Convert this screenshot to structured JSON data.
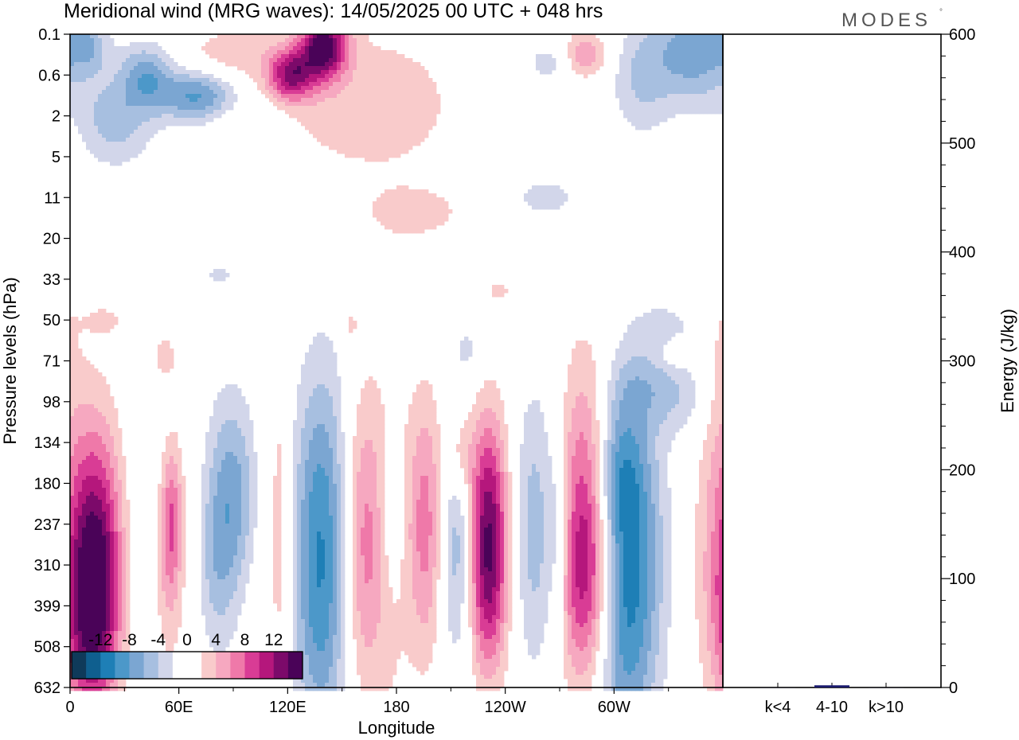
{
  "header": {
    "title": "Meridional wind (MRG waves):  14/05/2025  00 UTC  + 048 hrs",
    "logo": "MODES",
    "logo_mark": "°"
  },
  "colors": {
    "levels": [
      -14,
      -12,
      -10,
      -8,
      -6,
      -4,
      -2,
      0,
      2,
      4,
      6,
      8,
      10,
      12,
      14
    ],
    "palette": [
      "#0f3a5a",
      "#0f5f8f",
      "#1e7fb6",
      "#4c98c9",
      "#7ba6d2",
      "#a7bfe0",
      "#d2d6ea",
      "#ffffff",
      "#ffffff",
      "#f9cbcb",
      "#f6a8c0",
      "#ef79a9",
      "#d93c95",
      "#b5177c",
      "#7c0a6a",
      "#4a0358"
    ]
  },
  "chart_data": [
    {
      "type": "heatmap",
      "title": "Meridional wind (MRG waves):  14/05/2025  00 UTC  + 048 hrs",
      "xlabel": "Longitude",
      "ylabel": "Pressure levels (hPa)",
      "x_ticks": [
        "0",
        "60E",
        "120E",
        "180",
        "120W",
        "60W"
      ],
      "x_tick_degrees": [
        0,
        60,
        120,
        180,
        240,
        300
      ],
      "xlim": [
        0,
        360
      ],
      "y_ticks": [
        "0.1",
        "0.6",
        "2",
        "5",
        "11",
        "20",
        "33",
        "50",
        "71",
        "98",
        "134",
        "180",
        "237",
        "310",
        "399",
        "508",
        "632"
      ],
      "colorbar": {
        "labels": [
          "-12",
          "-8",
          "-4",
          "0",
          "4",
          "8",
          "12"
        ],
        "levels": [
          -14,
          -12,
          -10,
          -8,
          -6,
          -4,
          -2,
          0,
          2,
          4,
          6,
          8,
          10,
          12,
          14
        ]
      },
      "blobs": [
        {
          "lon": 14,
          "lev": 12.9,
          "w": 11,
          "h": 2.3,
          "amp": 13
        },
        {
          "lon": 10,
          "lev": 14.5,
          "w": 11,
          "h": 1.6,
          "amp": 6
        },
        {
          "lon": 56,
          "lev": 11.8,
          "w": 4,
          "h": 1.2,
          "amp": 6
        },
        {
          "lon": 54,
          "lev": 13.3,
          "w": 5,
          "h": 1.5,
          "amp": 2.8
        },
        {
          "lon": 90,
          "lev": 11.3,
          "w": 10,
          "h": 1.7,
          "amp": -6.5
        },
        {
          "lon": 80,
          "lev": 13.2,
          "w": 7,
          "h": 1.4,
          "amp": -2.8
        },
        {
          "lon": 116,
          "lev": 12.0,
          "w": 4,
          "h": 2.8,
          "amp": 3
        },
        {
          "lon": 140,
          "lev": 12.2,
          "w": 11,
          "h": 2.8,
          "amp": -9
        },
        {
          "lon": 138,
          "lev": 15.3,
          "w": 10,
          "h": 1.7,
          "amp": -2.5
        },
        {
          "lon": 163,
          "lev": 12.4,
          "w": 9,
          "h": 2.6,
          "amp": 6.5
        },
        {
          "lon": 180,
          "lev": 12.8,
          "w": 8,
          "h": 3.6,
          "amp": 2.6
        },
        {
          "lon": 196,
          "lev": 12.0,
          "w": 7,
          "h": 2.2,
          "amp": 6.5
        },
        {
          "lon": 177,
          "lev": 11.7,
          "w": 5,
          "h": 1.4,
          "amp": -3
        },
        {
          "lon": 214,
          "lev": 12.4,
          "w": 8,
          "h": 2.1,
          "amp": -7
        },
        {
          "lon": 215,
          "lev": 10.3,
          "w": 6,
          "h": 0.8,
          "amp": 4.5
        },
        {
          "lon": 230,
          "lev": 11.9,
          "w": 8,
          "h": 1.9,
          "amp": 13.5
        },
        {
          "lon": 230,
          "lev": 14.0,
          "w": 8,
          "h": 1.6,
          "amp": 6
        },
        {
          "lon": 256,
          "lev": 12.2,
          "w": 9,
          "h": 2.4,
          "amp": -6.5
        },
        {
          "lon": 270,
          "lev": 12.3,
          "w": 4,
          "h": 1.6,
          "amp": -3.5
        },
        {
          "lon": 285,
          "lev": 11.8,
          "w": 11,
          "h": 2.5,
          "amp": 11.5
        },
        {
          "lon": 282,
          "lev": 13.8,
          "w": 10,
          "h": 1.6,
          "amp": 4.5
        },
        {
          "lon": 306,
          "lev": 13.2,
          "w": 12,
          "h": 3.0,
          "amp": -12.5
        },
        {
          "lon": 300,
          "lev": 10.7,
          "w": 10,
          "h": 1.2,
          "amp": -5
        },
        {
          "lon": 358,
          "lev": 10.0,
          "w": 7,
          "h": 3.5,
          "amp": 2.6
        },
        {
          "lon": 140,
          "lev": 0.3,
          "w": 9,
          "h": 0.55,
          "amp": 14.5
        },
        {
          "lon": 122,
          "lev": 1.0,
          "w": 9,
          "h": 0.45,
          "amp": 11
        },
        {
          "lon": 165,
          "lev": 1.7,
          "w": 40,
          "h": 1.4,
          "amp": 3.2
        },
        {
          "lon": 190,
          "lev": 4.4,
          "w": 20,
          "h": 0.45,
          "amp": 2.8
        },
        {
          "lon": 70,
          "lev": 1.5,
          "w": 15,
          "h": 0.45,
          "amp": -8.5
        },
        {
          "lon": 42,
          "lev": 1.0,
          "w": 10,
          "h": 0.55,
          "amp": -6.5
        },
        {
          "lon": 25,
          "lev": 2.1,
          "w": 15,
          "h": 0.8,
          "amp": -5
        },
        {
          "lon": 10,
          "lev": 0.3,
          "w": 8,
          "h": 0.45,
          "amp": -4.5
        },
        {
          "lon": 345,
          "lev": 0.4,
          "w": 16,
          "h": 0.9,
          "amp": -7.5
        },
        {
          "lon": 315,
          "lev": 1.1,
          "w": 12,
          "h": 1.0,
          "amp": -4
        },
        {
          "lon": 284,
          "lev": 0.5,
          "w": 9,
          "h": 0.4,
          "amp": 5.5
        },
        {
          "lon": 88,
          "lev": 0.5,
          "w": 20,
          "h": 0.5,
          "amp": 3
        },
        {
          "lon": 264,
          "lev": 0.7,
          "w": 9,
          "h": 0.35,
          "amp": -3.2
        },
        {
          "lon": 92,
          "lev": 2.3,
          "w": 8,
          "h": 0.35,
          "amp": 2.4
        },
        {
          "lon": 105,
          "lev": 2.2,
          "w": 10,
          "h": 0.35,
          "amp": -3
        },
        {
          "lon": 262,
          "lev": 4.0,
          "w": 14,
          "h": 0.35,
          "amp": -3
        },
        {
          "lon": 155,
          "lev": 7.1,
          "w": 3,
          "h": 0.3,
          "amp": 2.4
        },
        {
          "lon": 260,
          "lev": 6.5,
          "w": 12,
          "h": 0.35,
          "amp": -2.2
        },
        {
          "lon": 240,
          "lev": 6.3,
          "w": 12,
          "h": 0.35,
          "amp": 2.5
        },
        {
          "lon": 330,
          "lev": 7.2,
          "w": 12,
          "h": 0.5,
          "amp": -2.5
        },
        {
          "lon": 320,
          "lev": 8.6,
          "w": 16,
          "h": 0.6,
          "amp": -3
        },
        {
          "lon": 338,
          "lev": 9.0,
          "w": 12,
          "h": 0.7,
          "amp": -2.3
        },
        {
          "lon": 333,
          "lev": 7.8,
          "w": 6,
          "h": 0.3,
          "amp": 2.3
        },
        {
          "lon": 52,
          "lev": 7.9,
          "w": 6,
          "h": 0.5,
          "amp": 2.5
        },
        {
          "lon": 20,
          "lev": 7.0,
          "w": 9,
          "h": 0.3,
          "amp": 2.2
        },
        {
          "lon": 82,
          "lev": 5.9,
          "w": 8,
          "h": 0.25,
          "amp": -2.3
        },
        {
          "lon": 220,
          "lev": 7.7,
          "w": 7,
          "h": 0.5,
          "amp": -2.3
        }
      ],
      "background_amp": 2.4
    },
    {
      "type": "bar",
      "ylabel": "Energy (J/kg)",
      "categories": [
        "k<4",
        "4-10",
        "k>10"
      ],
      "values": [
        0,
        2,
        0
      ],
      "ylim": [
        0,
        600
      ],
      "y_ticks": [
        "0",
        "100",
        "200",
        "300",
        "400",
        "500",
        "600"
      ],
      "bar_color": "#1a1a6e"
    }
  ]
}
